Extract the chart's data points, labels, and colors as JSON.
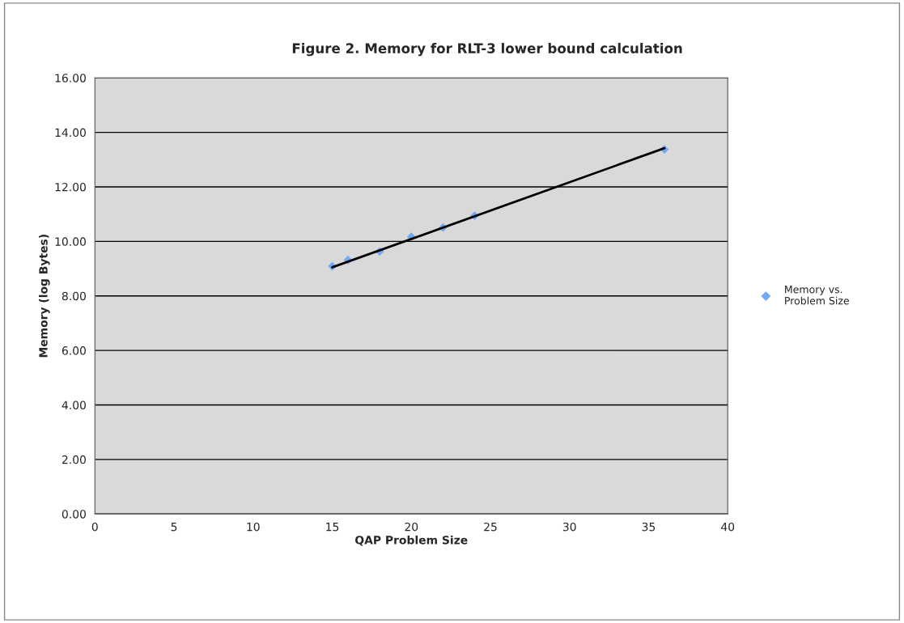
{
  "chart_data": {
    "type": "scatter",
    "title": "Figure 2. Memory for RLT-3 lower bound calculation",
    "xlabel": "QAP Problem Size",
    "ylabel": "Memory (log Bytes)",
    "x": [
      15,
      16,
      18,
      20,
      22,
      24,
      36
    ],
    "series": [
      {
        "name": "Memory vs.\nProblem Size",
        "color": "#6fa8f5",
        "values": [
          9.09,
          9.32,
          9.63,
          10.17,
          10.51,
          10.94,
          13.38
        ],
        "marker": "diamond"
      },
      {
        "type": "line",
        "color": "#000000",
        "x": [
          15,
          36
        ],
        "values": [
          9.05,
          13.42
        ],
        "marker": "none"
      }
    ],
    "xlim": [
      0,
      40
    ],
    "xticks": [
      0,
      5,
      10,
      15,
      20,
      25,
      30,
      35,
      40
    ],
    "ylim": [
      0,
      16
    ],
    "yticks": [
      {
        "value": 0,
        "label": "0.00"
      },
      {
        "value": 2,
        "label": "2.00"
      },
      {
        "value": 4,
        "label": "4.00"
      },
      {
        "value": 6,
        "label": "6.00"
      },
      {
        "value": 8,
        "label": "8.00"
      },
      {
        "value": 10,
        "label": "10.00"
      },
      {
        "value": 12,
        "label": "12.00"
      },
      {
        "value": 14,
        "label": "14.00"
      },
      {
        "value": 16,
        "label": "16.00"
      }
    ],
    "grid": "y",
    "legend": "right"
  }
}
